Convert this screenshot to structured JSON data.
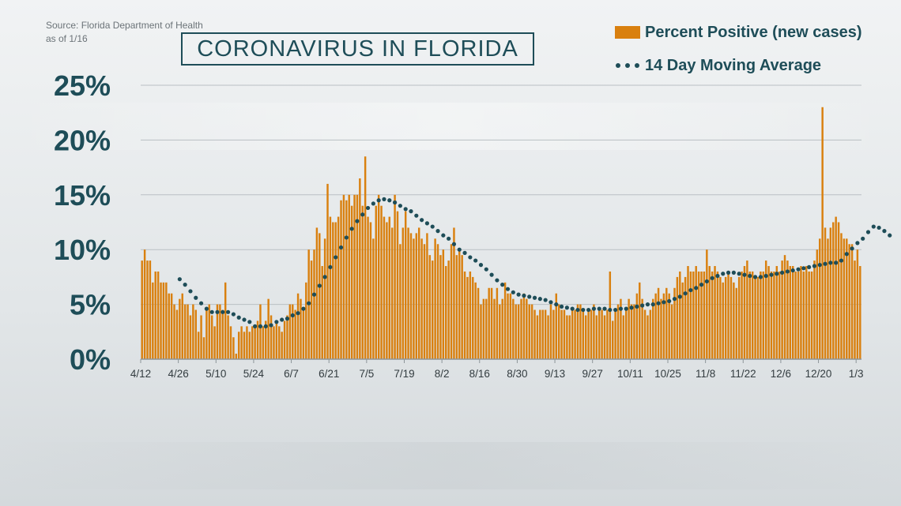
{
  "source": {
    "line1": "Source: Florida Department of Health",
    "line2": "as of 1/16"
  },
  "title": "CORONAVIRUS IN FLORIDA",
  "legend": {
    "bars": "Percent Positive (new cases)",
    "average": "14 Day Moving Average"
  },
  "colors": {
    "bar": "#d9800f",
    "dot": "#1e4d58",
    "text": "#1e4d58",
    "grid": "#b9bfc3"
  },
  "chart_data": {
    "type": "bar",
    "title": "CORONAVIRUS IN FLORIDA",
    "ylim": [
      0,
      25
    ],
    "y_ticks": [
      "0%",
      "5%",
      "10%",
      "15%",
      "20%",
      "25%"
    ],
    "x_tick_labels": [
      "4/12",
      "4/26",
      "5/10",
      "5/24",
      "6/7",
      "6/21",
      "7/5",
      "7/19",
      "8/2",
      "8/16",
      "8/30",
      "9/13",
      "9/27",
      "10/11",
      "10/25",
      "11/8",
      "11/22",
      "12/6",
      "12/20",
      "1/3"
    ],
    "x_tick_every_days": 14,
    "grid": true,
    "legend_position": "top-right",
    "series": [
      {
        "name": "Percent Positive (new cases)",
        "type": "bar",
        "start": "4/12",
        "values": [
          9.0,
          10.0,
          9.0,
          9.0,
          7.0,
          8.0,
          8.0,
          7.0,
          7.0,
          7.0,
          6.0,
          6.0,
          5.0,
          4.5,
          5.5,
          6.0,
          5.0,
          5.0,
          4.0,
          5.0,
          4.5,
          2.5,
          4.0,
          2.0,
          4.5,
          5.0,
          4.0,
          3.0,
          5.0,
          5.0,
          4.5,
          7.0,
          4.0,
          3.0,
          2.0,
          0.5,
          2.5,
          3.0,
          2.5,
          3.0,
          2.5,
          3.0,
          3.0,
          3.5,
          5.0,
          3.0,
          3.5,
          5.5,
          4.0,
          3.0,
          3.5,
          3.0,
          2.5,
          3.5,
          4.0,
          5.0,
          5.0,
          4.5,
          6.0,
          5.5,
          4.5,
          7.0,
          10.0,
          9.0,
          10.0,
          12.0,
          11.5,
          8.5,
          11.0,
          16.0,
          13.0,
          12.5,
          12.5,
          13.0,
          14.5,
          15.0,
          14.5,
          15.0,
          14.0,
          15.0,
          15.0,
          16.5,
          14.0,
          18.5,
          13.0,
          12.5,
          11.0,
          14.0,
          15.0,
          14.0,
          13.0,
          12.5,
          13.0,
          12.0,
          15.0,
          13.5,
          10.5,
          12.0,
          13.5,
          12.0,
          11.5,
          11.0,
          11.5,
          12.0,
          11.0,
          10.5,
          11.5,
          9.5,
          9.0,
          11.0,
          10.5,
          9.5,
          10.0,
          8.5,
          9.0,
          10.5,
          12.0,
          9.5,
          10.0,
          9.5,
          8.0,
          7.5,
          8.0,
          7.5,
          7.0,
          6.5,
          5.0,
          5.5,
          5.5,
          6.5,
          6.5,
          5.5,
          6.5,
          5.0,
          5.5,
          7.0,
          6.0,
          6.0,
          5.5,
          5.0,
          5.0,
          5.5,
          6.0,
          5.5,
          5.0,
          5.0,
          4.5,
          4.0,
          4.5,
          4.5,
          4.5,
          4.0,
          5.0,
          4.5,
          6.0,
          5.0,
          4.5,
          4.5,
          4.0,
          4.0,
          4.5,
          4.5,
          5.0,
          5.0,
          4.5,
          4.0,
          4.5,
          4.5,
          5.0,
          4.0,
          4.5,
          4.5,
          4.0,
          4.5,
          8.0,
          3.5,
          4.5,
          5.0,
          5.5,
          4.0,
          4.5,
          5.5,
          5.0,
          5.0,
          6.0,
          7.0,
          5.5,
          4.5,
          4.0,
          4.5,
          5.5,
          6.0,
          6.5,
          5.5,
          6.0,
          6.5,
          6.0,
          5.0,
          6.5,
          7.5,
          8.0,
          7.0,
          7.5,
          8.5,
          8.0,
          8.0,
          8.5,
          8.0,
          8.0,
          8.0,
          10.0,
          8.5,
          8.0,
          8.5,
          8.0,
          7.5,
          7.0,
          7.5,
          8.0,
          7.5,
          7.0,
          6.5,
          7.5,
          8.0,
          8.5,
          9.0,
          8.0,
          8.0,
          7.5,
          7.5,
          8.0,
          8.0,
          9.0,
          8.5,
          8.0,
          8.0,
          8.5,
          8.0,
          9.0,
          9.5,
          9.0,
          8.5,
          8.5,
          8.0,
          8.0,
          8.5,
          8.0,
          8.5,
          8.0,
          8.0,
          9.0,
          10.0,
          11.0,
          23.0,
          12.0,
          11.0,
          12.0,
          12.5,
          13.0,
          12.5,
          11.5,
          11.0,
          11.0,
          10.5,
          10.5,
          9.0,
          10.0,
          8.5
        ]
      },
      {
        "name": "14 Day Moving Average",
        "type": "dotted-line",
        "points": [
          [
            "4/26",
            7.3
          ],
          [
            "4/28",
            6.8
          ],
          [
            "4/30",
            6.2
          ],
          [
            "5/2",
            5.6
          ],
          [
            "5/4",
            5.1
          ],
          [
            "5/6",
            4.6
          ],
          [
            "5/8",
            4.3
          ],
          [
            "5/10",
            4.3
          ],
          [
            "5/12",
            4.3
          ],
          [
            "5/14",
            4.3
          ],
          [
            "5/16",
            4.1
          ],
          [
            "5/18",
            3.8
          ],
          [
            "5/20",
            3.6
          ],
          [
            "5/22",
            3.4
          ],
          [
            "5/24",
            3.0
          ],
          [
            "5/26",
            3.0
          ],
          [
            "5/28",
            3.0
          ],
          [
            "5/30",
            3.1
          ],
          [
            "6/1",
            3.4
          ],
          [
            "6/3",
            3.6
          ],
          [
            "6/5",
            3.7
          ],
          [
            "6/7",
            4.0
          ],
          [
            "6/9",
            4.2
          ],
          [
            "6/11",
            4.6
          ],
          [
            "6/13",
            5.1
          ],
          [
            "6/15",
            5.9
          ],
          [
            "6/17",
            6.7
          ],
          [
            "6/19",
            7.5
          ],
          [
            "6/21",
            8.4
          ],
          [
            "6/23",
            9.3
          ],
          [
            "6/25",
            10.2
          ],
          [
            "6/27",
            11.1
          ],
          [
            "6/29",
            11.9
          ],
          [
            "7/1",
            12.6
          ],
          [
            "7/3",
            13.2
          ],
          [
            "7/5",
            13.8
          ],
          [
            "7/7",
            14.2
          ],
          [
            "7/9",
            14.5
          ],
          [
            "7/11",
            14.6
          ],
          [
            "7/13",
            14.5
          ],
          [
            "7/15",
            14.3
          ],
          [
            "7/17",
            14.0
          ],
          [
            "7/19",
            13.7
          ],
          [
            "7/21",
            13.5
          ],
          [
            "7/23",
            13.1
          ],
          [
            "7/25",
            12.7
          ],
          [
            "7/27",
            12.4
          ],
          [
            "7/29",
            12.1
          ],
          [
            "7/31",
            11.7
          ],
          [
            "8/2",
            11.3
          ],
          [
            "8/4",
            11.0
          ],
          [
            "8/6",
            10.5
          ],
          [
            "8/8",
            10.0
          ],
          [
            "8/10",
            9.7
          ],
          [
            "8/12",
            9.3
          ],
          [
            "8/14",
            9.0
          ],
          [
            "8/16",
            8.6
          ],
          [
            "8/18",
            8.2
          ],
          [
            "8/20",
            7.7
          ],
          [
            "8/22",
            7.2
          ],
          [
            "8/24",
            6.8
          ],
          [
            "8/26",
            6.4
          ],
          [
            "8/28",
            6.1
          ],
          [
            "8/30",
            5.9
          ],
          [
            "9/1",
            5.8
          ],
          [
            "9/3",
            5.7
          ],
          [
            "9/5",
            5.6
          ],
          [
            "9/7",
            5.5
          ],
          [
            "9/9",
            5.4
          ],
          [
            "9/11",
            5.2
          ],
          [
            "9/13",
            5.0
          ],
          [
            "9/15",
            4.8
          ],
          [
            "9/17",
            4.7
          ],
          [
            "9/19",
            4.6
          ],
          [
            "9/21",
            4.5
          ],
          [
            "9/23",
            4.5
          ],
          [
            "9/25",
            4.5
          ],
          [
            "9/27",
            4.6
          ],
          [
            "9/29",
            4.6
          ],
          [
            "10/1",
            4.6
          ],
          [
            "10/3",
            4.5
          ],
          [
            "10/5",
            4.5
          ],
          [
            "10/7",
            4.6
          ],
          [
            "10/9",
            4.6
          ],
          [
            "10/11",
            4.7
          ],
          [
            "10/13",
            4.8
          ],
          [
            "10/15",
            4.9
          ],
          [
            "10/17",
            5.0
          ],
          [
            "10/19",
            5.0
          ],
          [
            "10/21",
            5.1
          ],
          [
            "10/23",
            5.2
          ],
          [
            "10/25",
            5.3
          ],
          [
            "10/27",
            5.5
          ],
          [
            "10/29",
            5.7
          ],
          [
            "10/31",
            6.0
          ],
          [
            "11/2",
            6.3
          ],
          [
            "11/4",
            6.5
          ],
          [
            "11/6",
            6.8
          ],
          [
            "11/8",
            7.1
          ],
          [
            "11/10",
            7.4
          ],
          [
            "11/12",
            7.6
          ],
          [
            "11/14",
            7.8
          ],
          [
            "11/16",
            7.9
          ],
          [
            "11/18",
            7.9
          ],
          [
            "11/20",
            7.8
          ],
          [
            "11/22",
            7.7
          ],
          [
            "11/24",
            7.6
          ],
          [
            "11/26",
            7.5
          ],
          [
            "11/28",
            7.5
          ],
          [
            "11/30",
            7.6
          ],
          [
            "12/2",
            7.7
          ],
          [
            "12/4",
            7.8
          ],
          [
            "12/6",
            7.9
          ],
          [
            "12/8",
            8.0
          ],
          [
            "12/10",
            8.1
          ],
          [
            "12/12",
            8.2
          ],
          [
            "12/14",
            8.3
          ],
          [
            "12/16",
            8.4
          ],
          [
            "12/18",
            8.5
          ],
          [
            "12/20",
            8.6
          ],
          [
            "12/22",
            8.7
          ],
          [
            "12/24",
            8.8
          ],
          [
            "12/26",
            8.8
          ],
          [
            "12/28",
            9.0
          ],
          [
            "12/30",
            9.6
          ],
          [
            "1/1",
            10.1
          ],
          [
            "1/3",
            10.6
          ],
          [
            "1/5",
            11.0
          ],
          [
            "1/7",
            11.6
          ],
          [
            "1/9",
            12.1
          ],
          [
            "1/11",
            12.0
          ],
          [
            "1/13",
            11.7
          ],
          [
            "1/15",
            11.3
          ]
        ]
      }
    ]
  }
}
